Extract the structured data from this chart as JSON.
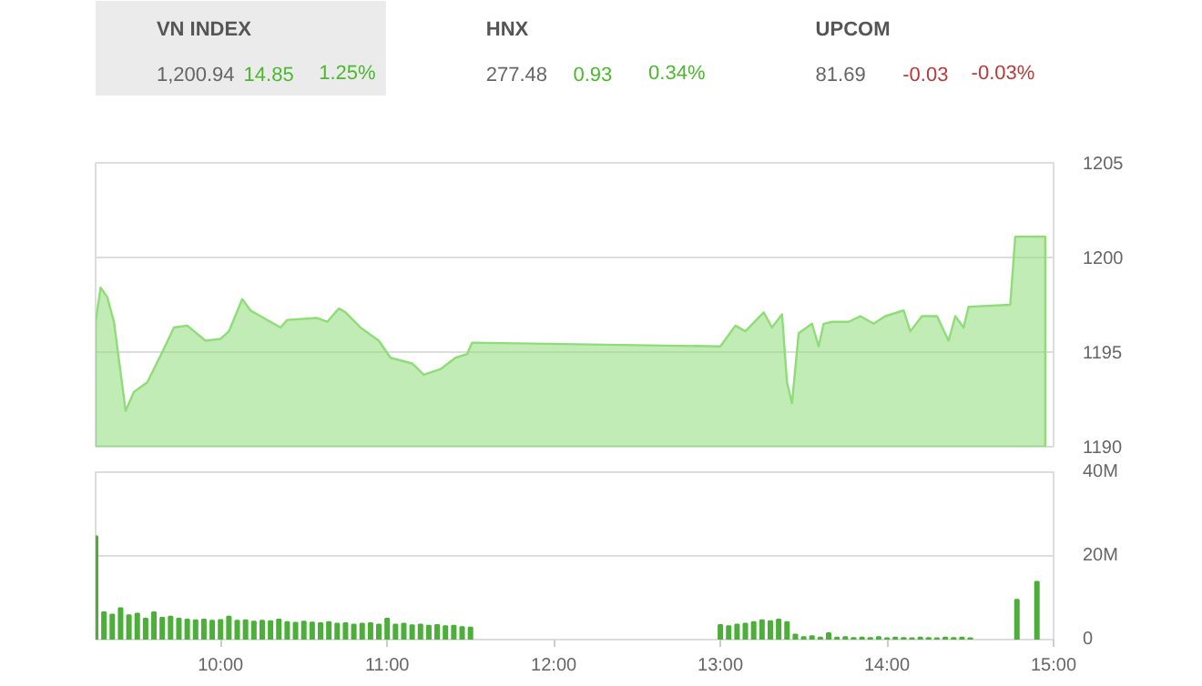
{
  "chart_data": [
    {
      "type": "other",
      "categories": [
        "VN INDEX",
        "HNX",
        "UPCOM"
      ],
      "annotations": [
        "1,200.94",
        "14.85",
        "1.25%",
        "277.48",
        "0.93",
        "0.34%",
        "81.69",
        "-0.03",
        "-0.03%"
      ]
    },
    {
      "type": "area",
      "color": "#8fdc78",
      "grid": "y",
      "tick_labels": "y",
      "x": [
        9.25,
        9.28,
        9.32,
        9.36,
        9.43,
        9.48,
        9.56,
        9.65,
        9.72,
        9.8,
        9.91,
        10.0,
        10.05,
        10.13,
        10.18,
        10.36,
        10.4,
        10.58,
        10.64,
        10.71,
        10.75,
        10.84,
        10.95,
        11.02,
        11.15,
        11.22,
        11.32,
        11.41,
        11.48,
        11.51,
        13.0,
        13.09,
        13.15,
        13.26,
        13.31,
        13.37,
        13.4,
        13.43,
        13.47,
        13.55,
        13.59,
        13.62,
        13.67,
        13.77,
        13.84,
        13.92,
        13.99,
        14.1,
        14.14,
        14.21,
        14.3,
        14.37,
        14.41,
        14.46,
        14.49,
        14.74,
        14.77,
        14.95
      ],
      "values": [
        1196.6,
        1198.4,
        1197.9,
        1196.6,
        1191.9,
        1192.9,
        1193.4,
        1195.0,
        1196.3,
        1196.4,
        1195.6,
        1195.7,
        1196.1,
        1197.8,
        1197.2,
        1196.3,
        1196.7,
        1196.8,
        1196.6,
        1197.3,
        1197.1,
        1196.3,
        1195.6,
        1194.7,
        1194.4,
        1193.8,
        1194.1,
        1194.7,
        1194.9,
        1195.5,
        1195.3,
        1196.4,
        1196.1,
        1197.1,
        1196.3,
        1197.0,
        1193.4,
        1192.3,
        1196.0,
        1196.5,
        1195.3,
        1196.5,
        1196.6,
        1196.6,
        1196.9,
        1196.5,
        1196.9,
        1197.2,
        1196.1,
        1196.9,
        1196.9,
        1195.6,
        1196.9,
        1196.3,
        1197.4,
        1197.5,
        1201.1,
        1201.1
      ],
      "xlim": [
        9.25,
        15.0
      ],
      "ylim": [
        1190,
        1205
      ],
      "yticks": [
        1190,
        1195,
        1200,
        1205
      ]
    },
    {
      "type": "bar",
      "color": "#4caf3a",
      "grid": "y",
      "x": [
        9.25,
        9.3,
        9.35,
        9.4,
        9.45,
        9.5,
        9.55,
        9.6,
        9.65,
        9.7,
        9.75,
        9.8,
        9.85,
        9.9,
        9.95,
        10.0,
        10.05,
        10.1,
        10.15,
        10.2,
        10.25,
        10.3,
        10.35,
        10.4,
        10.45,
        10.5,
        10.55,
        10.6,
        10.65,
        10.7,
        10.75,
        10.8,
        10.85,
        10.9,
        10.95,
        11.0,
        11.05,
        11.1,
        11.15,
        11.2,
        11.25,
        11.3,
        11.35,
        11.4,
        11.45,
        11.5,
        13.0,
        13.05,
        13.1,
        13.15,
        13.2,
        13.25,
        13.3,
        13.35,
        13.4,
        13.45,
        13.5,
        13.55,
        13.6,
        13.65,
        13.7,
        13.75,
        13.8,
        13.85,
        13.9,
        13.95,
        14.0,
        14.05,
        14.1,
        14.15,
        14.2,
        14.25,
        14.3,
        14.35,
        14.4,
        14.45,
        14.5,
        14.78,
        14.9
      ],
      "values": [
        24.7,
        6.5,
        6.0,
        7.5,
        5.8,
        6.2,
        5.0,
        6.5,
        5.2,
        5.5,
        5.0,
        4.8,
        4.6,
        4.8,
        4.5,
        4.7,
        5.5,
        4.5,
        4.6,
        4.3,
        4.5,
        4.4,
        4.8,
        4.2,
        4.0,
        4.3,
        4.1,
        3.9,
        4.2,
        3.8,
        3.9,
        3.6,
        3.8,
        3.9,
        3.6,
        5.0,
        3.6,
        3.8,
        3.4,
        3.6,
        3.3,
        3.5,
        3.2,
        3.3,
        3.0,
        2.9,
        3.5,
        3.2,
        3.6,
        3.8,
        4.2,
        4.6,
        4.4,
        4.8,
        4.2,
        1.2,
        0.6,
        0.8,
        0.5,
        1.5,
        0.5,
        0.6,
        0.4,
        0.5,
        0.4,
        0.6,
        0.3,
        0.5,
        0.4,
        0.3,
        0.5,
        0.4,
        0.3,
        0.5,
        0.4,
        0.5,
        0.3,
        9.5,
        13.8
      ],
      "xlim": [
        9.25,
        15.0
      ],
      "ylim": [
        0,
        40
      ],
      "xticks": [
        {
          "value": 10,
          "label": "10:00"
        },
        {
          "value": 11,
          "label": "11:00"
        },
        {
          "value": 12,
          "label": "12:00"
        },
        {
          "value": 13,
          "label": "13:00"
        },
        {
          "value": 14,
          "label": "14:00"
        },
        {
          "value": 15,
          "label": "15:00"
        }
      ],
      "yticks": [
        {
          "value": 0,
          "label": "0"
        },
        {
          "value": 20,
          "label": "20M"
        },
        {
          "value": 40,
          "label": "40M"
        }
      ]
    }
  ]
}
